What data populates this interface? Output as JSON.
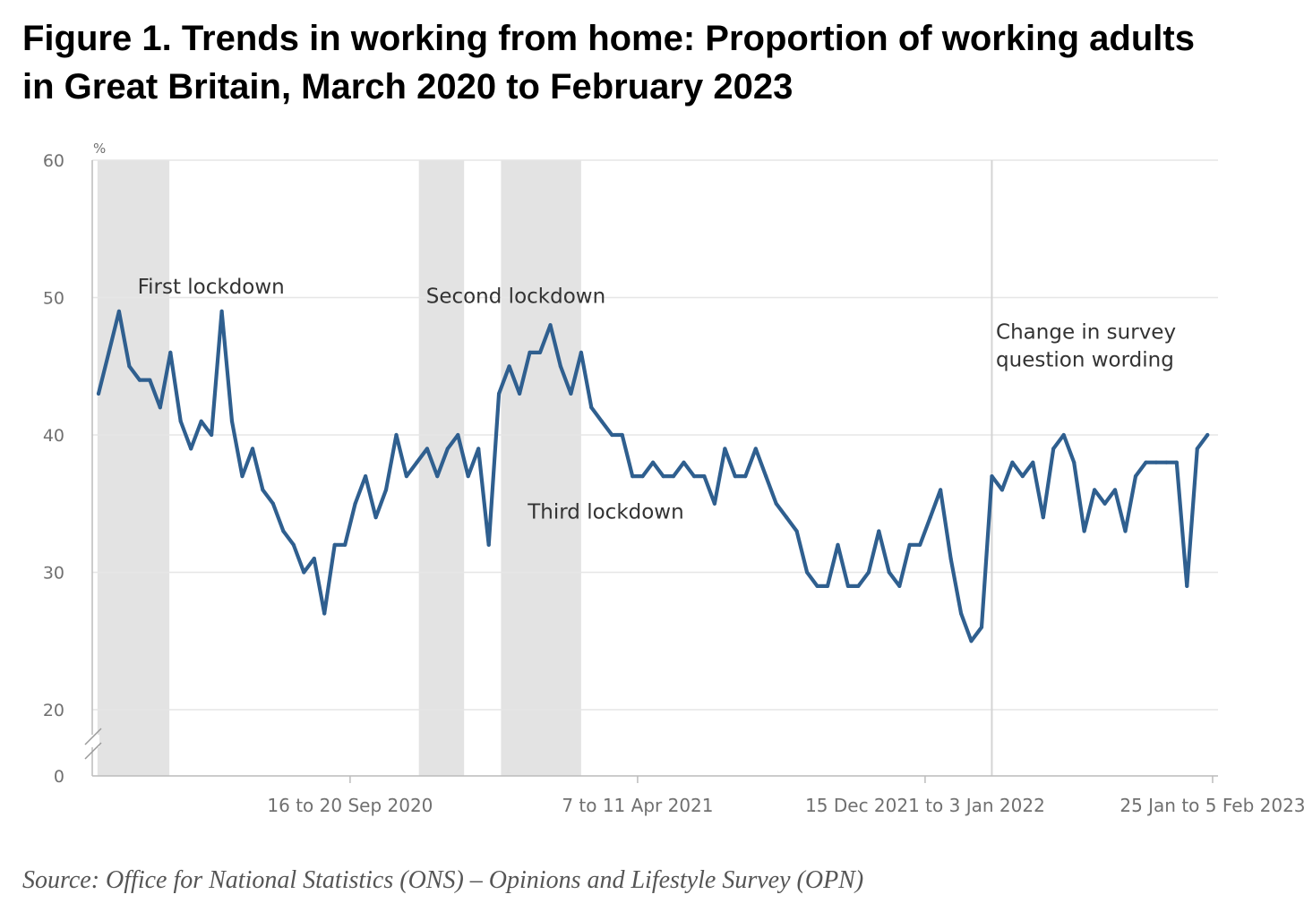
{
  "title_line1": "Figure 1. Trends in working from home: Proportion of working adults",
  "title_line2": "in Great Britain, March 2020 to February 2023",
  "source": "Source: Office for National Statistics (ONS) – Opinions and Lifestyle Survey (OPN)",
  "chart_data": {
    "type": "line",
    "title": "Figure 1. Trends in working from home: Proportion of working adults in Great Britain, March 2020 to February 2023",
    "xlabel": "",
    "ylabel": "%",
    "ylim": [
      0,
      60
    ],
    "y_axis_break": [
      0,
      20
    ],
    "yticks": [
      0,
      20,
      30,
      40,
      50,
      60
    ],
    "grid": true,
    "line_color": "#2f5f8f",
    "band_color": "#e3e3e3",
    "xtick_labels": [
      {
        "index": 24.5,
        "label": "16 to 20 Sep 2020"
      },
      {
        "index": 52.5,
        "label": "7 to 11 Apr 2021"
      },
      {
        "index": 80.5,
        "label": "15 Dec 2021 to 3 Jan 2022"
      },
      {
        "index": 108.5,
        "label": "25 Jan to 5 Feb 2023"
      }
    ],
    "shaded_periods": [
      {
        "label": "First lockdown",
        "start": -0.1,
        "end": 6.9
      },
      {
        "label": "Second lockdown",
        "start": 31.2,
        "end": 35.6
      },
      {
        "label": "Third lockdown",
        "start": 39.2,
        "end": 47.0
      }
    ],
    "annotations": [
      {
        "text": "First lockdown",
        "x": 3.8,
        "y": 50.3
      },
      {
        "text": "Second lockdown",
        "x": 31.9,
        "y": 49.6
      },
      {
        "text": "Third lockdown",
        "x": 41.8,
        "y": 33.9
      },
      {
        "text": "Change in survey",
        "x": 87.4,
        "y": 47.0
      },
      {
        "text": "question wording",
        "x": 87.4,
        "y": 45.0
      }
    ],
    "vertical_markers": [
      {
        "x": 87.0,
        "label": "Change in survey question wording"
      }
    ],
    "series": [
      {
        "name": "Proportion of working adults working from home",
        "values": [
          43,
          46,
          49,
          45,
          44,
          44,
          42,
          46,
          41,
          39,
          41,
          40,
          49,
          41,
          37,
          39,
          36,
          35,
          33,
          32,
          30,
          31,
          27,
          32,
          32,
          35,
          37,
          34,
          36,
          40,
          37,
          38,
          39,
          37,
          39,
          40,
          37,
          39,
          32,
          43,
          45,
          43,
          46,
          46,
          48,
          45,
          43,
          46,
          42,
          41,
          40,
          40,
          37,
          37,
          38,
          37,
          37,
          38,
          37,
          37,
          35,
          39,
          37,
          37,
          39,
          37,
          35,
          34,
          33,
          30,
          29,
          29,
          32,
          29,
          29,
          30,
          33,
          30,
          29,
          32,
          32,
          34,
          36,
          31,
          27,
          25,
          26,
          37,
          36,
          38,
          37,
          38,
          34,
          39,
          40,
          38,
          33,
          36,
          35,
          36,
          33,
          37,
          38,
          38,
          38,
          38,
          29,
          39,
          40
        ]
      }
    ]
  }
}
